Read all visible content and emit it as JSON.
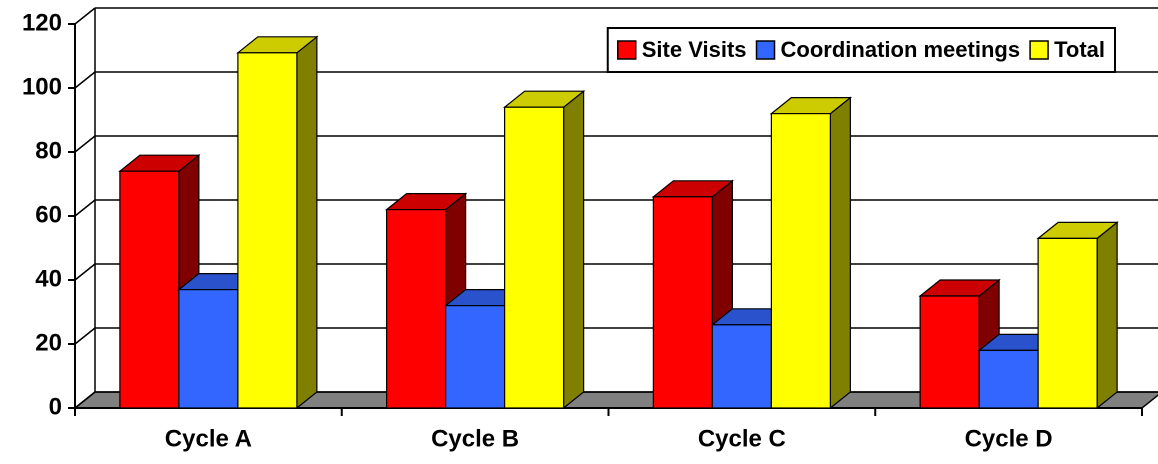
{
  "chart_data": {
    "type": "bar3d",
    "categories": [
      "Cycle A",
      "Cycle B",
      "Cycle C",
      "Cycle D"
    ],
    "series": [
      {
        "name": "Site Visits",
        "color": "#ff0000",
        "values": [
          74,
          62,
          66,
          35
        ]
      },
      {
        "name": "Coordination meetings",
        "color": "#3366ff",
        "values": [
          37,
          32,
          26,
          18
        ]
      },
      {
        "name": "Total",
        "color": "#ffff00",
        "values": [
          111,
          94,
          92,
          53
        ]
      }
    ],
    "ylim": [
      0,
      120
    ],
    "yticks": [
      0,
      20,
      40,
      60,
      80,
      100,
      120
    ],
    "grid": true,
    "legend": "top-right"
  }
}
